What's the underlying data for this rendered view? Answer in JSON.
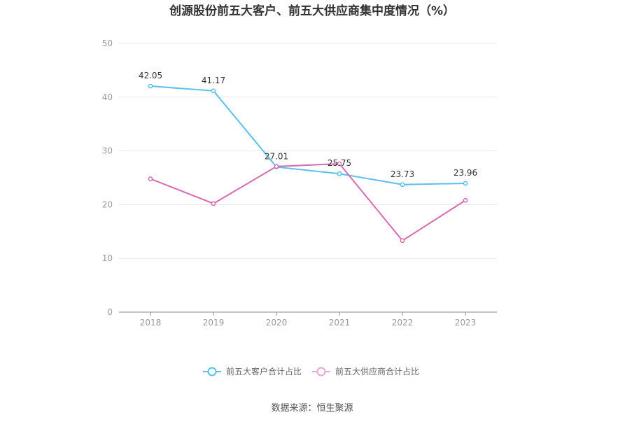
{
  "chart_data": {
    "type": "line",
    "title": "创源股份前五大客户、前五大供应商集中度情况（%）",
    "x": [
      "2018",
      "2019",
      "2020",
      "2021",
      "2022",
      "2023"
    ],
    "ylim": [
      0,
      50
    ],
    "yticks": [
      0,
      10,
      20,
      30,
      40,
      50
    ],
    "grid": true,
    "legend_position": "bottom",
    "series": [
      {
        "name": "前五大客户合计占比",
        "color": "#5bc0eb",
        "values": [
          42.05,
          41.17,
          27.01,
          25.75,
          23.73,
          23.96
        ],
        "labels": [
          "42.05",
          "41.17",
          "27.01",
          "25.75",
          "23.73",
          "23.96"
        ]
      },
      {
        "name": "前五大供应商合计占比",
        "color": "#d66bb0",
        "values": [
          24.8,
          20.2,
          27.1,
          27.6,
          13.3,
          20.8
        ],
        "labels": []
      }
    ]
  },
  "source": "数据来源：恒生聚源"
}
